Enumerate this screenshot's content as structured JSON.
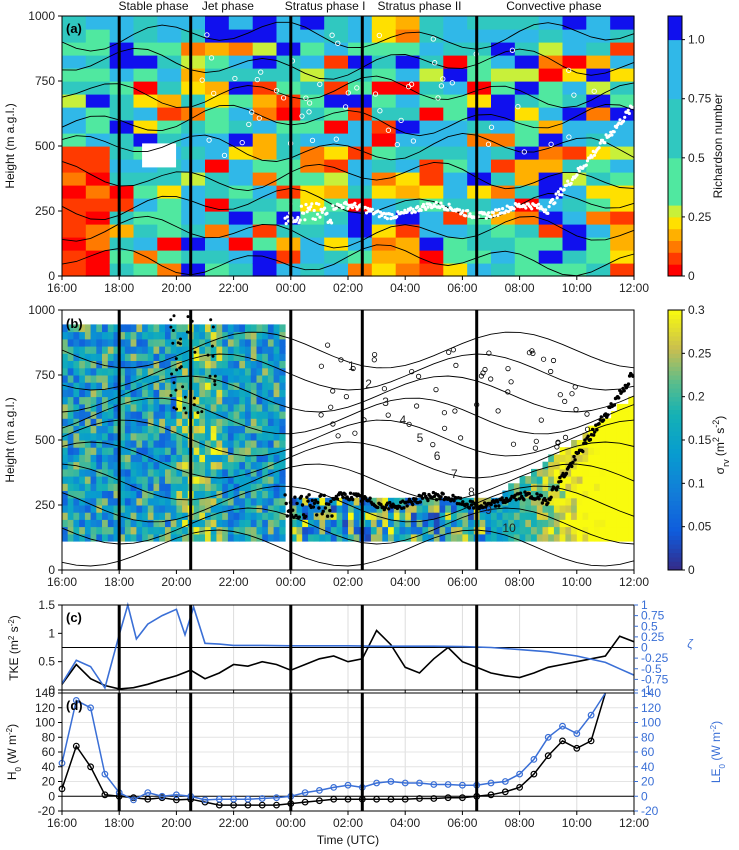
{
  "colors": {
    "blue_series": "#3a6fd6",
    "black_series": "#000000"
  },
  "figure": {
    "x_ticks": [
      "16:00",
      "18:00",
      "20:00",
      "22:00",
      "00:00",
      "02:00",
      "04:00",
      "06:00",
      "08:00",
      "10:00",
      "12:00"
    ],
    "x_label": "Time (UTC)",
    "phases": [
      "Stable phase",
      "Jet phase",
      "Stratus phase I",
      "Stratus phase II",
      "Convective phase"
    ],
    "phase_boundaries_h": [
      18.0,
      20.5,
      24.0,
      26.5,
      30.5
    ]
  },
  "chart_data": [
    {
      "type": "heatmap",
      "panel": "(a)",
      "ylabel": "Height (m a.g.l.)",
      "y_ticks": [
        "0",
        "250",
        "500",
        "750",
        "1000"
      ],
      "ylim": [
        0,
        1000
      ],
      "colorbar_label": "Richardson number",
      "colorbar_ticks": [
        "0",
        "0.25",
        "0.5",
        "0.75",
        "1.0"
      ],
      "colorbar_range": [
        0,
        1.1
      ]
    },
    {
      "type": "heatmap",
      "panel": "(b)",
      "ylabel": "Height (m a.g.l.)",
      "y_ticks": [
        "0",
        "250",
        "500",
        "750",
        "1000"
      ],
      "ylim": [
        0,
        1000
      ],
      "colorbar_ticks": [
        "0",
        "0.05",
        "0.1",
        "0.15",
        "0.2",
        "0.25",
        "0.3"
      ],
      "colorbar_range": [
        0,
        0.3
      ],
      "contour_labels": [
        "1",
        "2",
        "3",
        "4",
        "5",
        "6",
        "7",
        "8",
        "9",
        "10"
      ]
    },
    {
      "type": "line",
      "panel": "(c)",
      "ylabel_left": "TKE (m² s⁻²)",
      "ylabel_right": "ζ",
      "y_ticks_left": [
        "0",
        "0.5",
        "1",
        "1.5"
      ],
      "ylim_left": [
        0,
        1.5
      ],
      "y_ticks_right": [
        "-1",
        "-0.75",
        "-0.5",
        "-0.25",
        "0",
        "0.25",
        "0.5",
        "0.75",
        "1"
      ],
      "ylim_right": [
        -1,
        1
      ],
      "series": [
        {
          "axis": "left",
          "color": "#000000",
          "x": [
            16.0,
            16.5,
            17.0,
            17.5,
            18.0,
            18.5,
            19.0,
            19.5,
            20.0,
            20.5,
            21.0,
            21.5,
            22.0,
            22.5,
            23.0,
            23.5,
            24.0,
            24.5,
            25.0,
            25.5,
            26.0,
            26.5,
            27.0,
            27.5,
            28.0,
            28.5,
            29.0,
            29.5,
            30.0,
            30.5,
            31.0,
            31.5,
            32.0,
            32.5,
            33.0,
            33.5,
            34.0,
            34.5,
            35.0,
            35.5,
            36.0
          ],
          "y": [
            0.1,
            0.45,
            0.2,
            0.08,
            0.02,
            0.04,
            0.1,
            0.18,
            0.25,
            0.35,
            0.2,
            0.3,
            0.45,
            0.42,
            0.5,
            0.45,
            0.35,
            0.45,
            0.55,
            0.6,
            0.5,
            0.55,
            1.05,
            0.8,
            0.4,
            0.3,
            0.55,
            0.75,
            0.5,
            0.4,
            0.3,
            0.25,
            0.22,
            0.3,
            0.4,
            0.45,
            0.5,
            0.55,
            0.6,
            0.95,
            0.85
          ]
        },
        {
          "axis": "right",
          "color": "#3a6fd6",
          "x": [
            16.0,
            16.5,
            17.0,
            17.5,
            18.0,
            18.3,
            18.6,
            19.0,
            19.5,
            20.0,
            20.3,
            20.6,
            21.0,
            21.5,
            22.0,
            23.0,
            24.0,
            25.0,
            26.0,
            27.0,
            28.0,
            29.0,
            30.0,
            31.0,
            32.0,
            33.0,
            34.0,
            35.0,
            35.5,
            36.0
          ],
          "y": [
            -0.85,
            -0.3,
            -0.45,
            -0.95,
            0.3,
            1.0,
            0.2,
            0.55,
            0.75,
            0.9,
            0.3,
            0.95,
            0.1,
            0.08,
            0.05,
            0.05,
            0.04,
            0.04,
            0.04,
            0.03,
            0.03,
            0.03,
            0.02,
            0.0,
            -0.05,
            -0.1,
            -0.2,
            -0.35,
            -0.5,
            -0.65
          ]
        }
      ]
    },
    {
      "type": "line",
      "panel": "(d)",
      "ylabel_left": "H₀ (W m⁻²)",
      "ylabel_right": "LE₀ (W m⁻²)",
      "y_ticks": [
        "-20",
        "0",
        "20",
        "40",
        "60",
        "80",
        "100",
        "120",
        "140"
      ],
      "ylim": [
        -20,
        140
      ],
      "series": [
        {
          "axis": "left",
          "color": "#000000",
          "x": [
            16.0,
            16.5,
            17.0,
            17.5,
            18.0,
            18.5,
            19.0,
            19.5,
            20.0,
            20.5,
            21.0,
            21.5,
            22.0,
            22.5,
            23.0,
            23.5,
            24.0,
            24.5,
            25.0,
            25.5,
            26.0,
            26.5,
            27.0,
            27.5,
            28.0,
            28.5,
            29.0,
            29.5,
            30.0,
            30.5,
            31.0,
            31.5,
            32.0,
            32.5,
            33.0,
            33.5,
            34.0,
            34.5,
            35.0
          ],
          "y": [
            10,
            68,
            40,
            2,
            0,
            -2,
            -4,
            -2,
            -5,
            -4,
            -8,
            -12,
            -12,
            -12,
            -12,
            -12,
            -10,
            -8,
            -6,
            -4,
            -4,
            -4,
            -4,
            -4,
            -4,
            -3,
            -3,
            -2,
            -2,
            0,
            2,
            6,
            12,
            30,
            55,
            75,
            65,
            75,
            160
          ]
        },
        {
          "axis": "right",
          "color": "#3a6fd6",
          "x": [
            16.0,
            16.5,
            17.0,
            17.5,
            18.0,
            18.5,
            19.0,
            19.5,
            20.0,
            20.5,
            21.0,
            21.5,
            22.0,
            22.5,
            23.0,
            23.5,
            24.0,
            24.5,
            25.0,
            25.5,
            26.0,
            26.5,
            27.0,
            27.5,
            28.0,
            28.5,
            29.0,
            29.5,
            30.0,
            30.5,
            31.0,
            31.5,
            32.0,
            32.5,
            33.0,
            33.5,
            34.0,
            34.5,
            35.0
          ],
          "y": [
            45,
            130,
            120,
            30,
            5,
            -5,
            5,
            0,
            2,
            0,
            -5,
            -4,
            -4,
            -4,
            -3,
            -2,
            0,
            5,
            8,
            12,
            15,
            12,
            18,
            20,
            18,
            18,
            16,
            16,
            15,
            15,
            18,
            20,
            30,
            50,
            80,
            95,
            85,
            110,
            150
          ]
        }
      ]
    }
  ]
}
